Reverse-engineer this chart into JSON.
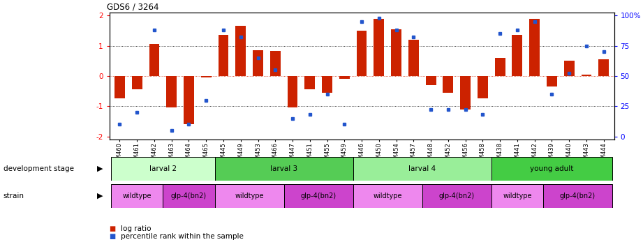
{
  "title": "GDS6 / 3264",
  "samples": [
    "GSM460",
    "GSM461",
    "GSM462",
    "GSM463",
    "GSM464",
    "GSM465",
    "GSM445",
    "GSM449",
    "GSM453",
    "GSM466",
    "GSM447",
    "GSM451",
    "GSM455",
    "GSM459",
    "GSM446",
    "GSM450",
    "GSM454",
    "GSM457",
    "GSM448",
    "GSM452",
    "GSM456",
    "GSM458",
    "GSM438",
    "GSM441",
    "GSM442",
    "GSM439",
    "GSM440",
    "GSM443",
    "GSM444"
  ],
  "log_ratio": [
    -0.75,
    -0.45,
    1.05,
    -1.05,
    -1.6,
    -0.05,
    1.35,
    1.65,
    0.85,
    0.82,
    -1.05,
    -0.45,
    -0.55,
    -0.1,
    1.5,
    1.9,
    1.55,
    1.2,
    -0.3,
    -0.55,
    -1.1,
    -0.75,
    0.6,
    1.35,
    1.9,
    -0.35,
    0.5,
    0.05,
    0.55
  ],
  "percentile": [
    10,
    20,
    88,
    5,
    10,
    30,
    88,
    82,
    65,
    55,
    15,
    18,
    35,
    10,
    95,
    98,
    88,
    82,
    22,
    22,
    22,
    18,
    85,
    88,
    95,
    35,
    52,
    75,
    70
  ],
  "dev_stages": [
    {
      "label": "larval 2",
      "start": 0,
      "end": 6,
      "color": "#ccffcc"
    },
    {
      "label": "larval 3",
      "start": 6,
      "end": 14,
      "color": "#55cc55"
    },
    {
      "label": "larval 4",
      "start": 14,
      "end": 22,
      "color": "#99ee99"
    },
    {
      "label": "young adult",
      "start": 22,
      "end": 29,
      "color": "#44cc44"
    }
  ],
  "strains": [
    {
      "label": "wildtype",
      "start": 0,
      "end": 3,
      "color": "#ee88ee"
    },
    {
      "label": "glp-4(bn2)",
      "start": 3,
      "end": 6,
      "color": "#cc44cc"
    },
    {
      "label": "wildtype",
      "start": 6,
      "end": 10,
      "color": "#ee88ee"
    },
    {
      "label": "glp-4(bn2)",
      "start": 10,
      "end": 14,
      "color": "#cc44cc"
    },
    {
      "label": "wildtype",
      "start": 14,
      "end": 18,
      "color": "#ee88ee"
    },
    {
      "label": "glp-4(bn2)",
      "start": 18,
      "end": 22,
      "color": "#cc44cc"
    },
    {
      "label": "wildtype",
      "start": 22,
      "end": 25,
      "color": "#ee88ee"
    },
    {
      "label": "glp-4(bn2)",
      "start": 25,
      "end": 29,
      "color": "#cc44cc"
    }
  ],
  "ylim": [
    -2.1,
    2.1
  ],
  "yticks_left": [
    -2,
    -1,
    0,
    1,
    2
  ],
  "ytick_labels_left": [
    "-2",
    "-1",
    "0",
    "1",
    "2"
  ],
  "yticks_right_pos": [
    -2,
    -1,
    0,
    1,
    2
  ],
  "ytick_labels_right": [
    "0",
    "25",
    "50",
    "75",
    "100%"
  ],
  "bar_color": "#cc2200",
  "dot_color": "#2255cc",
  "legend_items": [
    "log ratio",
    "percentile rank within the sample"
  ],
  "figwidth": 9.21,
  "figheight": 3.57,
  "dpi": 100
}
